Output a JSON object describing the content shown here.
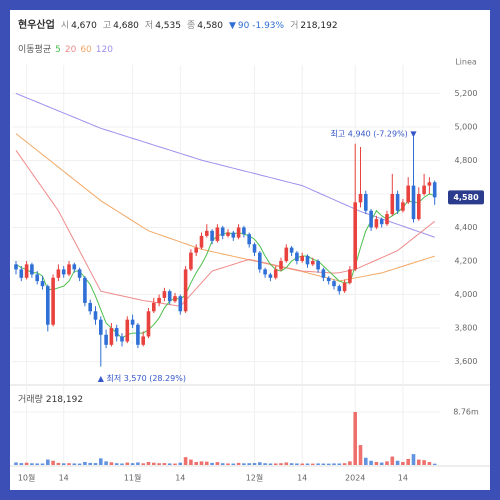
{
  "chart_data": {
    "type": "candlestick",
    "title": "현우산업",
    "quote": [
      {
        "label": "시",
        "value": "4,670"
      },
      {
        "label": "고",
        "value": "4,680"
      },
      {
        "label": "저",
        "value": "4,535"
      },
      {
        "label": "종",
        "value": "4,580"
      },
      {
        "label": "▼",
        "value": "90 -1.93%",
        "color": "#2f6fd6"
      },
      {
        "label": "거",
        "value": "218,192"
      }
    ],
    "ma_title": "이동평균",
    "scale_label": "Linea",
    "categories": [
      null,
      null,
      "10월",
      null,
      null,
      null,
      null,
      null,
      null,
      "14",
      null,
      null,
      null,
      null,
      null,
      null,
      null,
      null,
      null,
      null,
      null,
      null,
      "11월",
      null,
      null,
      null,
      null,
      null,
      null,
      null,
      null,
      "14",
      null,
      null,
      null,
      null,
      null,
      null,
      null,
      null,
      null,
      null,
      null,
      null,
      null,
      "12월",
      null,
      null,
      null,
      null,
      null,
      null,
      null,
      null,
      "14",
      null,
      null,
      null,
      null,
      null,
      null,
      null,
      null,
      null,
      "2024",
      null,
      null,
      null,
      null,
      null,
      null,
      null,
      null,
      "14",
      null,
      null,
      null,
      null,
      null,
      null
    ],
    "ohlc": [
      [
        4180,
        4200,
        4120,
        4150
      ],
      [
        4150,
        4170,
        4080,
        4100
      ],
      [
        4100,
        4200,
        4090,
        4180
      ],
      [
        4180,
        4190,
        4100,
        4120
      ],
      [
        4120,
        4140,
        4060,
        4080
      ],
      [
        4080,
        4110,
        4030,
        4050
      ],
      [
        4050,
        4060,
        3780,
        3820
      ],
      [
        3820,
        4120,
        3810,
        4100
      ],
      [
        4100,
        4180,
        4080,
        4150
      ],
      [
        4150,
        4170,
        4100,
        4120
      ],
      [
        4120,
        4200,
        4110,
        4180
      ],
      [
        4180,
        4190,
        4130,
        4150
      ],
      [
        4150,
        4160,
        4080,
        4100
      ],
      [
        4100,
        4110,
        3930,
        3950
      ],
      [
        3950,
        3970,
        3880,
        3900
      ],
      [
        3900,
        3930,
        3820,
        3850
      ],
      [
        3850,
        3870,
        3570,
        3760
      ],
      [
        3760,
        3790,
        3680,
        3700
      ],
      [
        3700,
        3830,
        3690,
        3800
      ],
      [
        3800,
        3820,
        3720,
        3750
      ],
      [
        3750,
        3770,
        3690,
        3720
      ],
      [
        3720,
        3870,
        3710,
        3850
      ],
      [
        3850,
        3880,
        3800,
        3820
      ],
      [
        3820,
        3830,
        3680,
        3700
      ],
      [
        3700,
        3780,
        3690,
        3750
      ],
      [
        3750,
        3920,
        3740,
        3900
      ],
      [
        3900,
        3980,
        3890,
        3950
      ],
      [
        3950,
        4000,
        3930,
        3980
      ],
      [
        3980,
        4040,
        3960,
        4020
      ],
      [
        4020,
        4030,
        3940,
        3960
      ],
      [
        3960,
        4010,
        3950,
        3990
      ],
      [
        3990,
        4000,
        3880,
        3900
      ],
      [
        3900,
        4170,
        3890,
        4150
      ],
      [
        4150,
        4270,
        4140,
        4250
      ],
      [
        4250,
        4300,
        4230,
        4280
      ],
      [
        4280,
        4370,
        4270,
        4350
      ],
      [
        4350,
        4420,
        4340,
        4380
      ],
      [
        4380,
        4390,
        4300,
        4320
      ],
      [
        4320,
        4420,
        4310,
        4400
      ],
      [
        4400,
        4410,
        4330,
        4350
      ],
      [
        4350,
        4390,
        4340,
        4370
      ],
      [
        4370,
        4380,
        4320,
        4340
      ],
      [
        4340,
        4420,
        4330,
        4400
      ],
      [
        4400,
        4410,
        4340,
        4360
      ],
      [
        4360,
        4370,
        4280,
        4300
      ],
      [
        4300,
        4310,
        4230,
        4250
      ],
      [
        4250,
        4260,
        4130,
        4150
      ],
      [
        4150,
        4160,
        4100,
        4120
      ],
      [
        4120,
        4130,
        4080,
        4100
      ],
      [
        4100,
        4170,
        4090,
        4150
      ],
      [
        4150,
        4220,
        4140,
        4200
      ],
      [
        4200,
        4300,
        4190,
        4280
      ],
      [
        4280,
        4290,
        4230,
        4250
      ],
      [
        4250,
        4260,
        4180,
        4200
      ],
      [
        4200,
        4250,
        4190,
        4230
      ],
      [
        4230,
        4240,
        4160,
        4180
      ],
      [
        4180,
        4220,
        4170,
        4200
      ],
      [
        4200,
        4210,
        4130,
        4150
      ],
      [
        4150,
        4160,
        4080,
        4100
      ],
      [
        4100,
        4110,
        4060,
        4080
      ],
      [
        4080,
        4090,
        4030,
        4050
      ],
      [
        4050,
        4060,
        4000,
        4020
      ],
      [
        4020,
        4090,
        4010,
        4070
      ],
      [
        4070,
        4170,
        4060,
        4150
      ],
      [
        4150,
        4900,
        4140,
        4550
      ],
      [
        4550,
        4880,
        4520,
        4600
      ],
      [
        4600,
        4620,
        4480,
        4500
      ],
      [
        4500,
        4510,
        4380,
        4400
      ],
      [
        4400,
        4470,
        4390,
        4450
      ],
      [
        4450,
        4460,
        4400,
        4420
      ],
      [
        4420,
        4500,
        4410,
        4480
      ],
      [
        4480,
        4720,
        4470,
        4600
      ],
      [
        4600,
        4620,
        4480,
        4500
      ],
      [
        4500,
        4570,
        4490,
        4550
      ],
      [
        4550,
        4700,
        4540,
        4650
      ],
      [
        4650,
        4940,
        4430,
        4450
      ],
      [
        4450,
        4640,
        4440,
        4600
      ],
      [
        4600,
        4720,
        4590,
        4650
      ],
      [
        4650,
        4700,
        4600,
        4670
      ],
      [
        4670,
        4680,
        4535,
        4580
      ]
    ],
    "up_color": "#e8413e",
    "down_color": "#2f6fd6",
    "series": [
      {
        "name": "5",
        "color": "#4cbf4c",
        "values": [
          4180,
          4160,
          4150,
          4130,
          4130,
          4110,
          4030,
          4030,
          4040,
          4050,
          4080,
          4140,
          4140,
          4100,
          4060,
          3990,
          3910,
          3830,
          3800,
          3770,
          3740,
          3760,
          3770,
          3770,
          3770,
          3790,
          3820,
          3860,
          3920,
          3960,
          3980,
          3970,
          4000,
          4070,
          4130,
          4180,
          4240,
          4320,
          4350,
          4360,
          4370,
          4360,
          4370,
          4360,
          4350,
          4330,
          4290,
          4230,
          4180,
          4150,
          4140,
          4160,
          4200,
          4220,
          4230,
          4230,
          4210,
          4200,
          4170,
          4140,
          4110,
          4080,
          4070,
          4070,
          4170,
          4280,
          4380,
          4440,
          4500,
          4470,
          4450,
          4470,
          4490,
          4520,
          4560,
          4550,
          4550,
          4580,
          4600,
          4590
        ]
      },
      {
        "name": "20",
        "color": "#f08a8a",
        "values": [
          4860,
          4815,
          4770,
          4725,
          4680,
          4635,
          4590,
          4545,
          4500,
          4440,
          4380,
          4320,
          4260,
          4200,
          4140,
          4080,
          4020,
          4013,
          4006,
          3999,
          3992,
          3985,
          3978,
          3971,
          3964,
          3960,
          3955,
          3950,
          3945,
          3940,
          3935,
          3930,
          3965,
          4000,
          4035,
          4070,
          4105,
          4140,
          4150,
          4160,
          4170,
          4180,
          4190,
          4200,
          4210,
          4203,
          4196,
          4189,
          4182,
          4175,
          4168,
          4161,
          4154,
          4147,
          4140,
          4138,
          4136,
          4134,
          4132,
          4130,
          4128,
          4130,
          4137,
          4144,
          4150,
          4164,
          4178,
          4192,
          4206,
          4220,
          4234,
          4248,
          4262,
          4287,
          4312,
          4337,
          4362,
          4387,
          4412,
          4437
        ]
      },
      {
        "name": "60",
        "color": "#f2a865",
        "values": [
          4960,
          4935,
          4910,
          4885,
          4860,
          4835,
          4810,
          4785,
          4760,
          4735,
          4710,
          4685,
          4660,
          4635,
          4610,
          4585,
          4560,
          4540,
          4520,
          4500,
          4480,
          4460,
          4440,
          4420,
          4400,
          4380,
          4369,
          4358,
          4347,
          4336,
          4325,
          4314,
          4303,
          4292,
          4281,
          4270,
          4263,
          4256,
          4249,
          4242,
          4235,
          4228,
          4221,
          4214,
          4207,
          4200,
          4193,
          4186,
          4179,
          4172,
          4165,
          4158,
          4151,
          4144,
          4137,
          4129,
          4121,
          4113,
          4105,
          4097,
          4089,
          4081,
          4087,
          4093,
          4099,
          4105,
          4111,
          4117,
          4123,
          4129,
          4139,
          4149,
          4159,
          4169,
          4179,
          4189,
          4199,
          4209,
          4219,
          4229
        ]
      },
      {
        "name": "120",
        "color": "#9d92ee",
        "values": [
          5200,
          5187,
          5174,
          5161,
          5148,
          5135,
          5122,
          5109,
          5096,
          5083,
          5070,
          5057,
          5044,
          5031,
          5018,
          5005,
          4992,
          4982,
          4972,
          4962,
          4952,
          4942,
          4932,
          4922,
          4912,
          4902,
          4892,
          4882,
          4872,
          4862,
          4852,
          4842,
          4832,
          4822,
          4812,
          4802,
          4794,
          4786,
          4778,
          4770,
          4762,
          4754,
          4746,
          4738,
          4730,
          4722,
          4714,
          4706,
          4698,
          4690,
          4682,
          4674,
          4666,
          4658,
          4650,
          4636,
          4622,
          4608,
          4594,
          4580,
          4566,
          4552,
          4538,
          4524,
          4510,
          4496,
          4485,
          4474,
          4463,
          4452,
          4441,
          4430,
          4419,
          4408,
          4397,
          4386,
          4375,
          4364,
          4353,
          4342
        ]
      }
    ],
    "ylim": [
      3490,
      5310
    ],
    "yticks": [
      {
        "value": 3600,
        "label": "3,600"
      },
      {
        "value": 3800,
        "label": "3,800"
      },
      {
        "value": 4000,
        "label": "4,000"
      },
      {
        "value": 4200,
        "label": "4,200"
      },
      {
        "value": 4400,
        "label": "4,400"
      },
      {
        "value": 4600,
        "label": "4,600"
      },
      {
        "value": 4800,
        "label": "4,800"
      },
      {
        "value": 5000,
        "label": "5,000"
      },
      {
        "value": 5200,
        "label": "5,200"
      }
    ],
    "grid": true,
    "annotations": {
      "low": "▲ 최저 3,570 (28.29%)",
      "high": "최고 4,940 (-7.29%) ▼"
    },
    "volume": {
      "title": "거래량",
      "value_label": "218,192",
      "ylim": [
        0,
        12400000
      ],
      "yticks": [
        {
          "value": 8760000,
          "label": "8.76m"
        }
      ],
      "values": [
        420000,
        310000,
        380000,
        290000,
        260000,
        250000,
        900000,
        700000,
        350000,
        280000,
        300000,
        260000,
        240000,
        500000,
        350000,
        320000,
        1100000,
        600000,
        450000,
        300000,
        250000,
        400000,
        300000,
        420000,
        280000,
        500000,
        380000,
        300000,
        320000,
        260000,
        240000,
        380000,
        1300000,
        900000,
        500000,
        600000,
        550000,
        350000,
        480000,
        300000,
        260000,
        240000,
        350000,
        280000,
        300000,
        320000,
        450000,
        300000,
        250000,
        260000,
        300000,
        420000,
        300000,
        260000,
        240000,
        250000,
        230000,
        260000,
        240000,
        230000,
        260000,
        250000,
        300000,
        600000,
        8760000,
        3300000,
        1200000,
        700000,
        500000,
        400000,
        600000,
        1400000,
        700000,
        500000,
        1000000,
        1800000,
        900000,
        800000,
        500000,
        218192
      ]
    }
  }
}
